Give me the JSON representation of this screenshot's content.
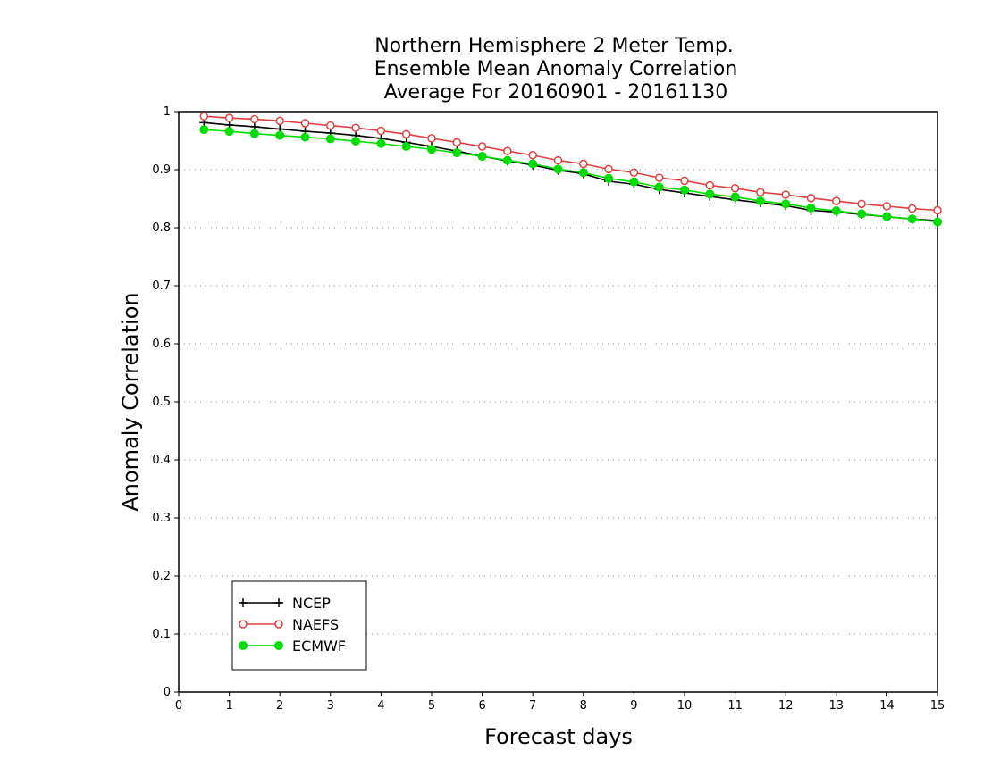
{
  "chart_data": {
    "type": "line",
    "title_lines": [
      "Northern Hemisphere 2 Meter Temp.",
      "Ensemble Mean Anomaly Correlation",
      "Average For 20160901 - 20161130"
    ],
    "xlabel": "Forecast days",
    "ylabel": "Anomaly Correlation",
    "xlim": [
      0,
      15
    ],
    "ylim": [
      0,
      1
    ],
    "x_ticks": [
      "0",
      "1",
      "2",
      "3",
      "4",
      "5",
      "6",
      "7",
      "8",
      "9",
      "10",
      "11",
      "12",
      "13",
      "14",
      "15"
    ],
    "y_ticks": [
      "0",
      "0.1",
      "0.2",
      "0.3",
      "0.4",
      "0.5",
      "0.6",
      "0.7",
      "0.8",
      "0.9",
      "1"
    ],
    "grid": "horizontal dotted",
    "legend_position": "bottom-left",
    "x": [
      0.5,
      1,
      1.5,
      2,
      2.5,
      3,
      3.5,
      4,
      4.5,
      5,
      5.5,
      6,
      6.5,
      7,
      7.5,
      8,
      8.5,
      9,
      9.5,
      10,
      10.5,
      11,
      11.5,
      12,
      12.5,
      13,
      13.5,
      14,
      14.5,
      15
    ],
    "series": [
      {
        "name": "NCEP",
        "color": "#000000",
        "marker": "plus",
        "values": [
          0.981,
          0.977,
          0.974,
          0.97,
          0.966,
          0.963,
          0.959,
          0.954,
          0.947,
          0.94,
          0.932,
          0.923,
          0.915,
          0.908,
          0.899,
          0.893,
          0.88,
          0.875,
          0.866,
          0.86,
          0.854,
          0.848,
          0.843,
          0.838,
          0.83,
          0.827,
          0.823,
          0.819,
          0.815,
          0.812
        ]
      },
      {
        "name": "NAEFS",
        "color": "#e04040",
        "marker": "open-circle",
        "values": [
          0.992,
          0.989,
          0.987,
          0.984,
          0.98,
          0.976,
          0.972,
          0.967,
          0.961,
          0.954,
          0.947,
          0.94,
          0.932,
          0.925,
          0.916,
          0.91,
          0.901,
          0.895,
          0.886,
          0.881,
          0.873,
          0.868,
          0.861,
          0.857,
          0.851,
          0.846,
          0.841,
          0.837,
          0.833,
          0.83
        ]
      },
      {
        "name": "ECMWF",
        "color": "#00dd00",
        "marker": "filled-circle",
        "values": [
          0.969,
          0.966,
          0.962,
          0.959,
          0.956,
          0.953,
          0.949,
          0.945,
          0.94,
          0.935,
          0.929,
          0.923,
          0.916,
          0.91,
          0.901,
          0.895,
          0.885,
          0.879,
          0.87,
          0.865,
          0.858,
          0.853,
          0.846,
          0.841,
          0.834,
          0.829,
          0.824,
          0.819,
          0.815,
          0.81
        ]
      }
    ]
  }
}
